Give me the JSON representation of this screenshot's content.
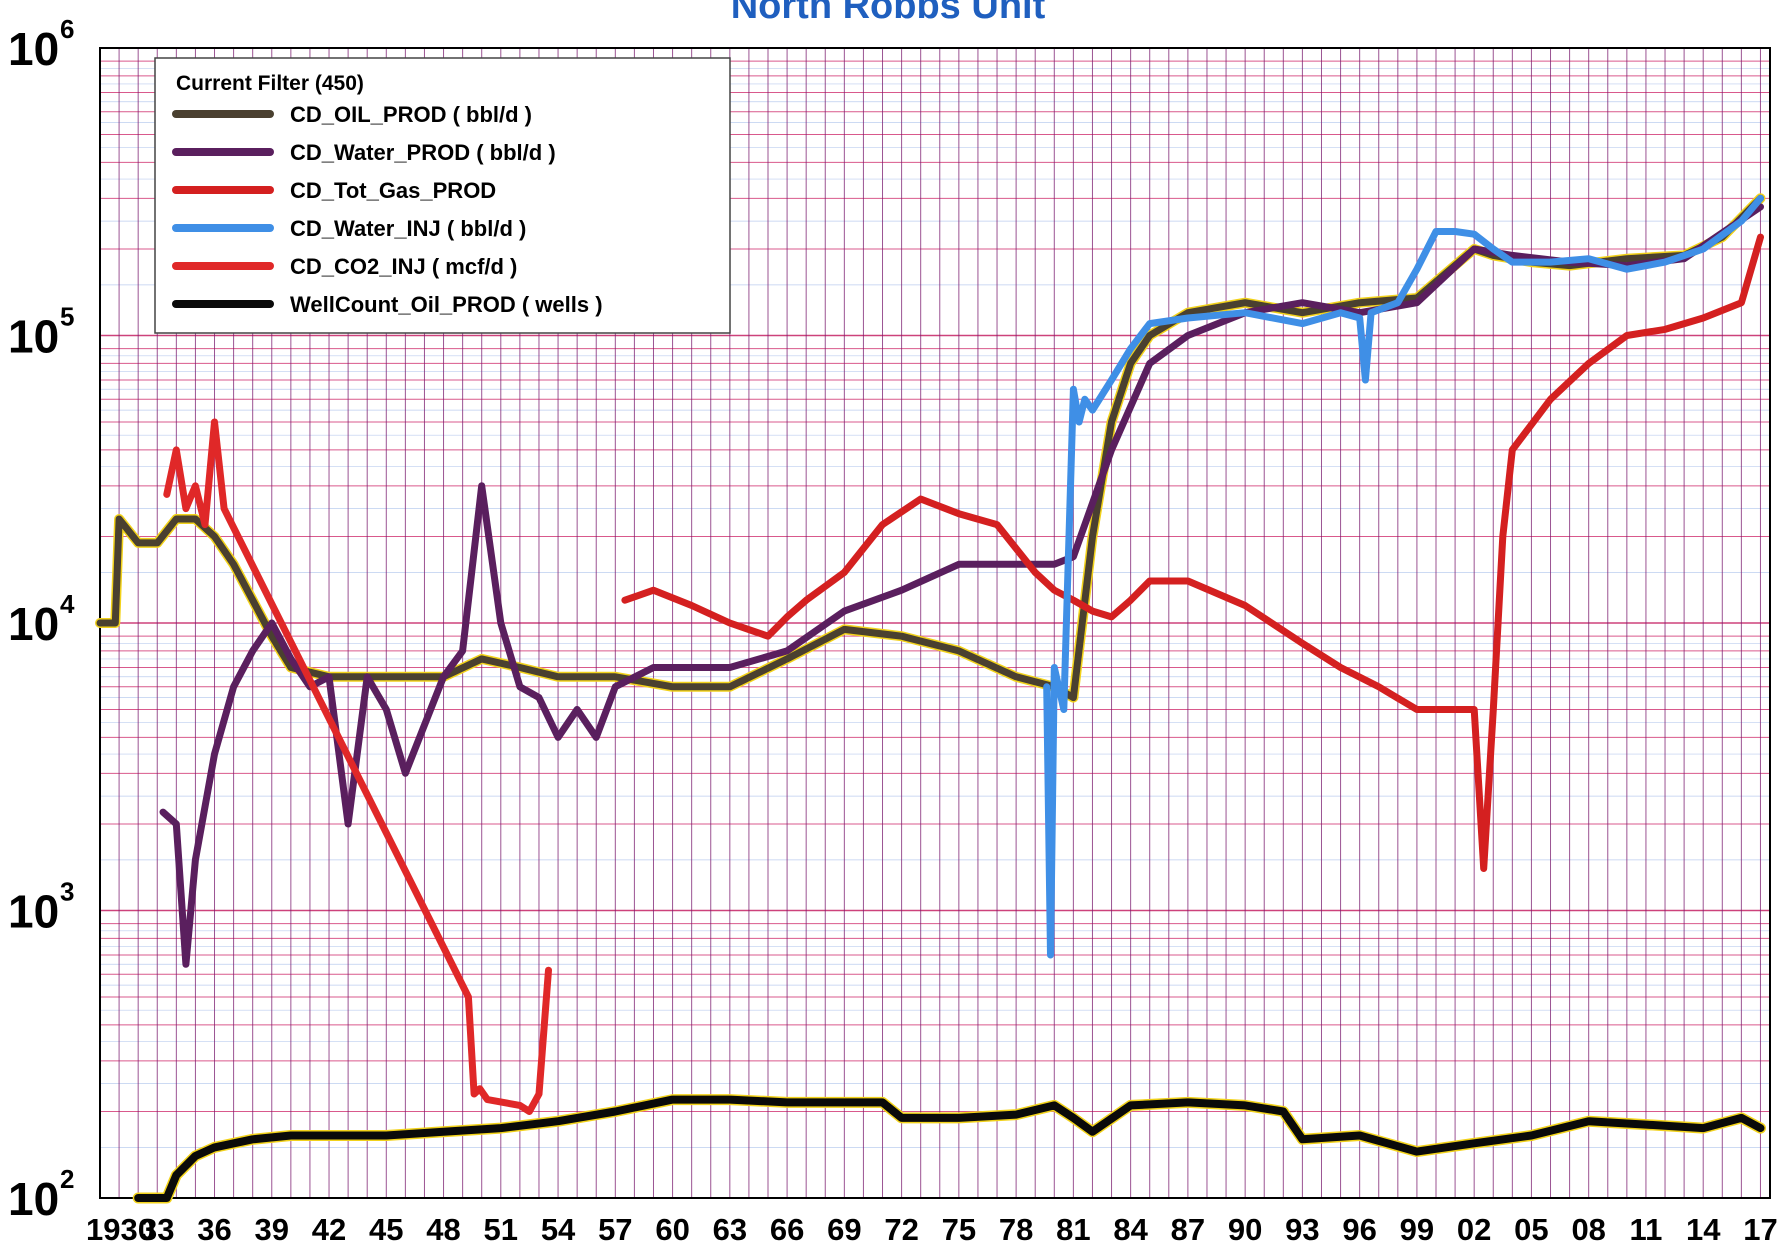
{
  "chart_data": {
    "type": "line",
    "title": "North Robbs Unit",
    "yscale": "log",
    "ylim": [
      100,
      1000000
    ],
    "xlim": [
      1930,
      2017.5
    ],
    "y_ticks": [
      {
        "base": "10",
        "exp": "2"
      },
      {
        "base": "10",
        "exp": "3"
      },
      {
        "base": "10",
        "exp": "4"
      },
      {
        "base": "10",
        "exp": "5"
      },
      {
        "base": "10",
        "exp": "6"
      }
    ],
    "x_tick_labels": [
      "1930",
      "33",
      "36",
      "39",
      "42",
      "45",
      "48",
      "51",
      "54",
      "57",
      "60",
      "63",
      "66",
      "69",
      "72",
      "75",
      "78",
      "81",
      "84",
      "87",
      "90",
      "93",
      "96",
      "99",
      "02",
      "05",
      "08",
      "11",
      "14",
      "17"
    ],
    "grid": true,
    "legend": {
      "position": "top-left",
      "title": "Current Filter (450)",
      "entries": [
        {
          "label": "CD_OIL_PROD ( bbl/d )",
          "color": "#4a4030"
        },
        {
          "label": "CD_Water_PROD ( bbl/d )",
          "color": "#5a1f5e"
        },
        {
          "label": "CD_Tot_Gas_PROD",
          "color": "#d42020"
        },
        {
          "label": "CD_Water_INJ ( bbl/d )",
          "color": "#3f8fe6"
        },
        {
          "label": "CD_CO2_INJ ( mcf/d )",
          "color": "#e02828"
        },
        {
          "label": "WellCount_Oil_PROD ( wells )",
          "color": "#0a0a0a"
        }
      ]
    },
    "series": [
      {
        "name": "CD_OIL_PROD ( bbl/d )",
        "color": "#4a4030",
        "x": [
          1930,
          1930.8,
          1931,
          1932,
          1933,
          1934,
          1935,
          1936,
          1937,
          1938,
          1939,
          1940,
          1942,
          1945,
          1948,
          1950,
          1952,
          1954,
          1957,
          1960,
          1963,
          1966,
          1969,
          1972,
          1975,
          1978,
          1980,
          1981,
          1982,
          1983,
          1984,
          1985,
          1987,
          1990,
          1993,
          1996,
          1999,
          2002,
          2003,
          2004,
          2005,
          2007,
          2010,
          2013,
          2015,
          2017
        ],
        "values": [
          10000,
          10000,
          23000,
          19000,
          19000,
          23000,
          23000,
          20000,
          16000,
          12000,
          9000,
          7000,
          6500,
          6500,
          6500,
          7500,
          7000,
          6500,
          6500,
          6000,
          6000,
          7500,
          9500,
          9000,
          8000,
          6500,
          6000,
          5500,
          20000,
          50000,
          80000,
          100000,
          120000,
          130000,
          120000,
          130000,
          135000,
          200000,
          190000,
          185000,
          180000,
          175000,
          185000,
          190000,
          220000,
          300000
        ]
      },
      {
        "name": "CD_Water_PROD ( bbl/d )",
        "color": "#5a1f5e",
        "x": [
          1933.3,
          1934,
          1934.5,
          1935,
          1936,
          1937,
          1938,
          1939,
          1940,
          1941,
          1942,
          1943,
          1944,
          1945,
          1946,
          1948,
          1949,
          1950,
          1951,
          1952,
          1953,
          1954,
          1955,
          1956,
          1957,
          1959,
          1961,
          1963,
          1966,
          1969,
          1972,
          1975,
          1978,
          1980,
          1981,
          1983,
          1985,
          1987,
          1990,
          1993,
          1996,
          1999,
          2002,
          2004,
          2007,
          2010,
          2013,
          2017
        ],
        "values": [
          2200,
          2000,
          650,
          1500,
          3500,
          6000,
          8000,
          10000,
          7500,
          6000,
          6500,
          2000,
          6500,
          5000,
          3000,
          6500,
          8000,
          30000,
          10000,
          6000,
          5500,
          4000,
          5000,
          4000,
          6000,
          7000,
          7000,
          7000,
          8000,
          11000,
          13000,
          16000,
          16000,
          16000,
          17000,
          40000,
          80000,
          100000,
          120000,
          130000,
          120000,
          130000,
          200000,
          190000,
          180000,
          175000,
          185000,
          280000
        ]
      },
      {
        "name": "CD_Tot_Gas_PROD",
        "color": "#d42020",
        "x": [
          1957.5,
          1959,
          1961,
          1963,
          1965,
          1966,
          1967,
          1969,
          1971,
          1973,
          1975,
          1977,
          1979,
          1980,
          1981,
          1982,
          1983,
          1984,
          1985,
          1987,
          1990,
          1993,
          1995,
          1997,
          1999,
          2001,
          2002,
          2002.5,
          2003,
          2003.5,
          2004,
          2006,
          2008,
          2010,
          2012,
          2014,
          2016,
          2017
        ],
        "values": [
          12000,
          13000,
          11500,
          10000,
          9000,
          10500,
          12000,
          15000,
          22000,
          27000,
          24000,
          22000,
          15000,
          13000,
          12000,
          11000,
          10500,
          12000,
          14000,
          14000,
          11500,
          8500,
          7000,
          6000,
          5000,
          5000,
          5000,
          1400,
          5000,
          20000,
          40000,
          60000,
          80000,
          100000,
          105000,
          115000,
          130000,
          220000
        ]
      },
      {
        "name": "CD_Water_INJ ( bbl/d )",
        "color": "#3f8fe6",
        "x": [
          1979.6,
          1979.8,
          1980,
          1980.5,
          1981,
          1981.3,
          1981.6,
          1982,
          1983,
          1984,
          1985,
          1987,
          1990,
          1993,
          1995,
          1996,
          1996.3,
          1996.6,
          1998,
          1999,
          2000,
          2001,
          2002,
          2003,
          2004,
          2006,
          2008,
          2010,
          2012,
          2014,
          2016,
          2017
        ],
        "values": [
          6000,
          700,
          7000,
          5000,
          65000,
          50000,
          60000,
          55000,
          70000,
          90000,
          110000,
          115000,
          120000,
          110000,
          120000,
          115000,
          70000,
          120000,
          130000,
          170000,
          230000,
          230000,
          225000,
          200000,
          180000,
          180000,
          185000,
          170000,
          180000,
          200000,
          250000,
          300000
        ]
      },
      {
        "name": "CD_CO2_INJ ( mcf/d )",
        "color": "#e02828",
        "x": [
          1933.5,
          1934,
          1934.5,
          1935,
          1935.5,
          1936,
          1936.5,
          1949.3,
          1949.6,
          1949.9,
          1950.3,
          1952,
          1952.5,
          1953,
          1953.5
        ],
        "values": [
          28000,
          40000,
          25000,
          30000,
          22000,
          50000,
          25000,
          500,
          230,
          240,
          220,
          210,
          200,
          230,
          620
        ]
      },
      {
        "name": "WellCount_Oil_PROD ( wells )",
        "color": "#0a0a0a",
        "x": [
          1932,
          1933.5,
          1934,
          1935,
          1936,
          1938,
          1940,
          1942,
          1945,
          1948,
          1951,
          1954,
          1957,
          1960,
          1963,
          1966,
          1969,
          1971,
          1972,
          1975,
          1978,
          1980,
          1981,
          1982,
          1984,
          1987,
          1990,
          1992,
          1993,
          1996,
          1999,
          2002,
          2005,
          2008,
          2011,
          2014,
          2016,
          2017
        ],
        "values": [
          100,
          100,
          120,
          140,
          150,
          160,
          165,
          165,
          165,
          170,
          175,
          185,
          200,
          220,
          220,
          215,
          215,
          215,
          190,
          190,
          195,
          210,
          190,
          170,
          210,
          215,
          210,
          200,
          160,
          165,
          145,
          155,
          165,
          185,
          180,
          175,
          190,
          175
        ]
      }
    ]
  }
}
